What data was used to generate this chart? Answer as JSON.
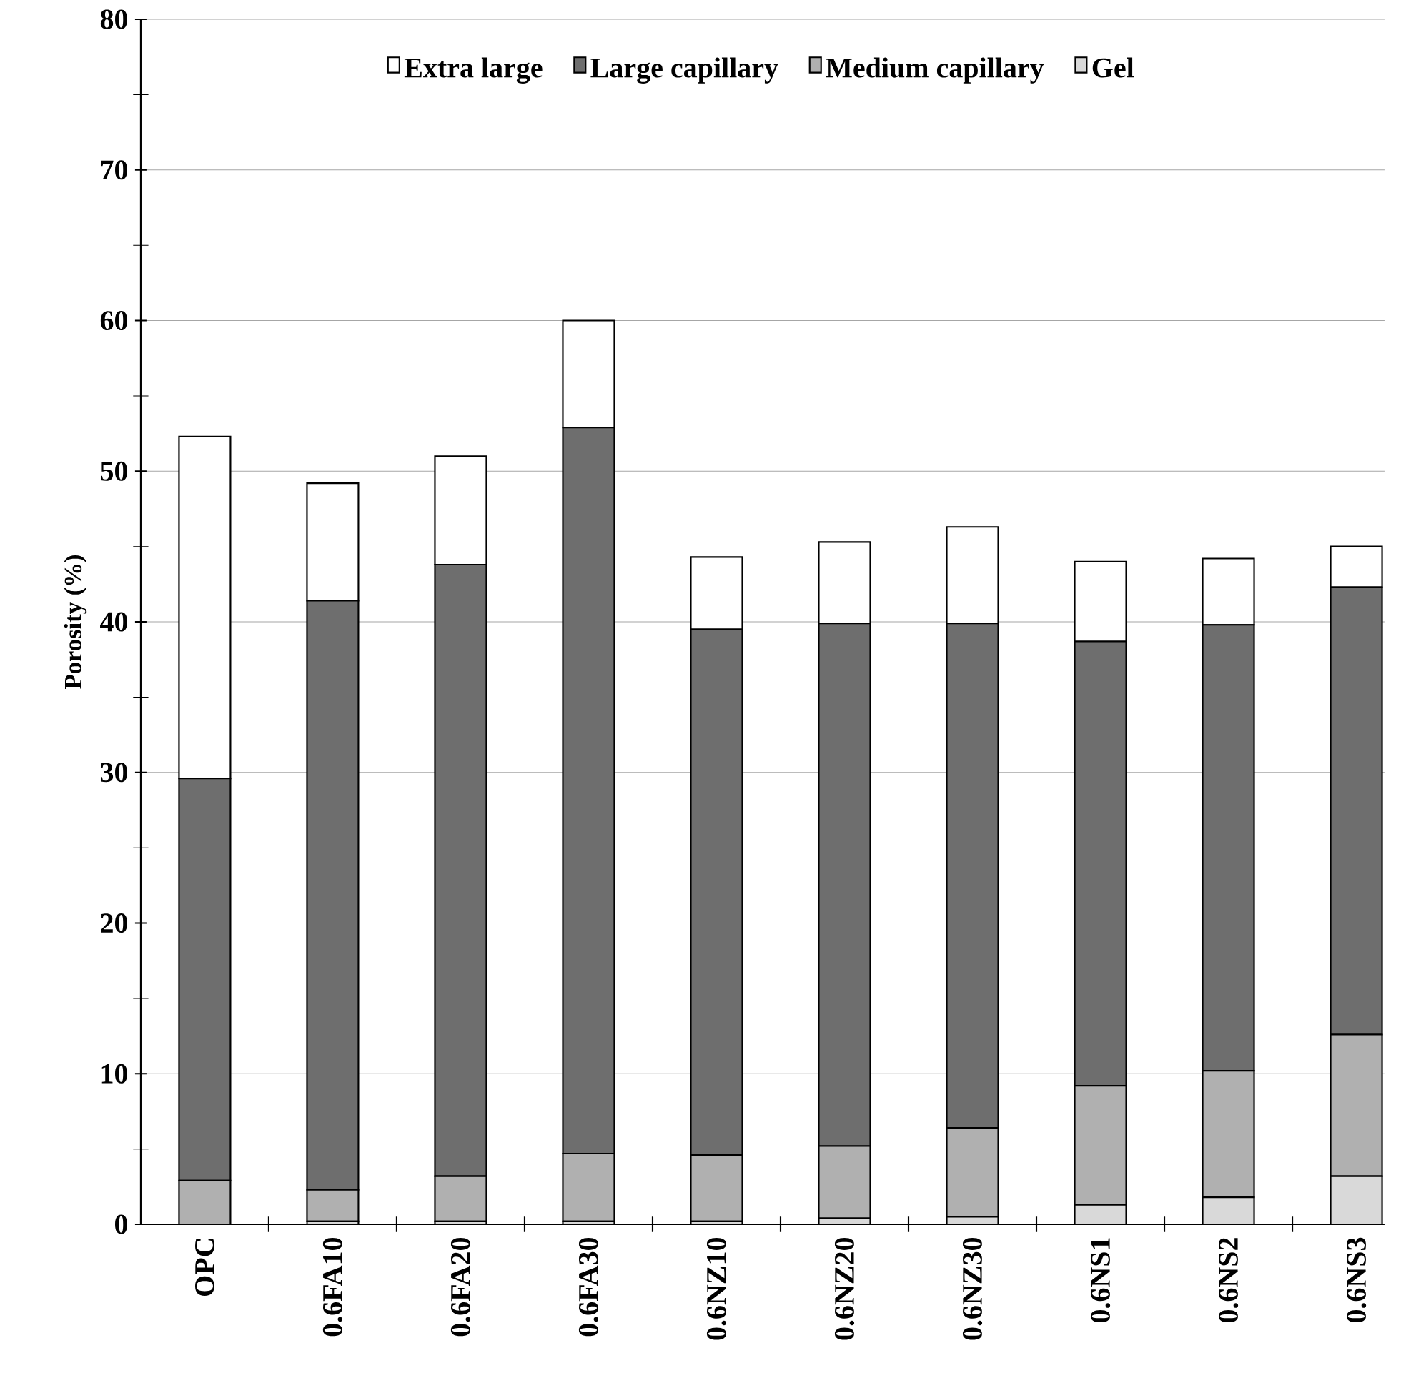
{
  "chart_data": {
    "type": "bar",
    "stacked": true,
    "ylabel": "Porosity (%)",
    "categories": [
      "OPC",
      "0.6FA10",
      "0.6FA20",
      "0.6FA30",
      "0.6NZ10",
      "0.6NZ20",
      "0.6NZ30",
      "0.6NS1",
      "0.6NS2",
      "0.6NS3"
    ],
    "series": [
      {
        "name": "Gel",
        "color": "#d9d9d9",
        "values": [
          0,
          0.2,
          0.2,
          0.2,
          0.2,
          0.4,
          0.5,
          1.3,
          1.8,
          3.2
        ]
      },
      {
        "name": "Medium capillary",
        "color": "#b0b0b0",
        "values": [
          2.9,
          2.1,
          3.0,
          4.5,
          4.4,
          4.8,
          5.9,
          7.9,
          8.4,
          9.4
        ]
      },
      {
        "name": "Large capillary",
        "color": "#6e6e6e",
        "values": [
          26.7,
          39.1,
          40.6,
          48.2,
          34.9,
          34.7,
          33.5,
          29.5,
          29.6,
          29.7
        ]
      },
      {
        "name": "Extra large",
        "color": "#ffffff",
        "values": [
          22.7,
          7.8,
          7.2,
          7.1,
          4.8,
          5.4,
          6.4,
          5.3,
          4.4,
          2.7
        ]
      }
    ],
    "ylim": [
      0,
      80
    ],
    "yticks": [
      0,
      10,
      20,
      30,
      40,
      50,
      60,
      70,
      80
    ],
    "grid": "y",
    "legend": "top"
  }
}
